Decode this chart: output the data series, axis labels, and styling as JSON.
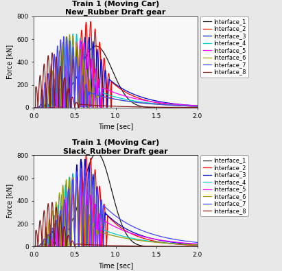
{
  "title1_line1": "Train 1 (Moving Car)",
  "title1_line2": "New_Rubber Draft gear",
  "title2_line1": "Train 1 (Moving Car)",
  "title2_line2": "Slack_Rubber Draft gear",
  "xlabel": "Time [sec]",
  "ylabel": "Force [kN]",
  "xlim": [
    0.0,
    2.0
  ],
  "ylim": [
    0,
    800
  ],
  "yticks": [
    0,
    200,
    400,
    600,
    800
  ],
  "xticks": [
    0.0,
    0.5,
    1.0,
    1.5,
    2.0
  ],
  "legend_labels": [
    "Interface_1",
    "Interface_2",
    "Interface_3",
    "Interface_4",
    "Interface_5",
    "Interface_6",
    "Interface_7",
    "Interface_8"
  ],
  "colors": [
    "#1a1a1a",
    "#ff0000",
    "#0000cd",
    "#00cccc",
    "#ff00ff",
    "#999900",
    "#4444ff",
    "#8b1a1a"
  ],
  "plot_bg": "#f8f8f8",
  "fig_bg": "#e8e8e8",
  "title_fontsize": 8,
  "label_fontsize": 7,
  "legend_fontsize": 6,
  "tick_fontsize": 6.5,
  "linewidth": 0.9
}
